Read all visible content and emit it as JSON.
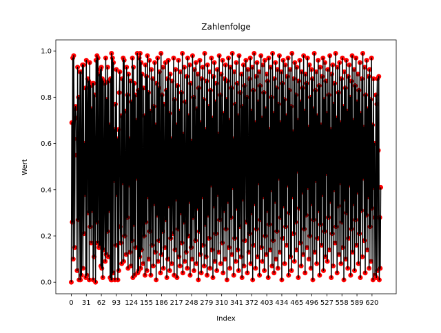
{
  "chart_data": {
    "type": "line",
    "title": "Zahlenfolge",
    "x_label": "Index",
    "y_label": "Wert",
    "line_color": "#000000",
    "marker_color": "#ff0000",
    "xlim": [
      -31.9,
      669.9
    ],
    "xticks": [
      0,
      31,
      62,
      93,
      124,
      155,
      186,
      217,
      248,
      279,
      310,
      341,
      372,
      403,
      434,
      465,
      496,
      527,
      558,
      589,
      620
    ],
    "ylim": [
      -0.05,
      1.048
    ],
    "yticks": [
      {
        "value": 0,
        "label": "0.0"
      },
      {
        "value": 0.2,
        "label": "0.2"
      },
      {
        "value": 0.4,
        "label": "0.4"
      },
      {
        "value": 0.6,
        "label": "0.6"
      },
      {
        "value": 0.8,
        "label": "0.8"
      },
      {
        "value": 1,
        "label": "1.0"
      }
    ],
    "values": [
      0.0,
      0.69,
      0.26,
      0.97,
      0.1,
      0.98,
      0.62,
      0.15,
      0.75,
      0.76,
      0.71,
      0.55,
      0.05,
      0.93,
      0.27,
      0.8,
      0.01,
      0.52,
      0.91,
      0.01,
      0.91,
      0.03,
      0.46,
      0.94,
      0.06,
      0.94,
      0.21,
      0.6,
      0.38,
      0.84,
      0.02,
      0.96,
      0.03,
      0.72,
      0.88,
      0.3,
      0.87,
      0.01,
      0.95,
      0.24,
      0.85,
      0.17,
      0.75,
      0.31,
      0.86,
      0.01,
      0.86,
      0.11,
      0.81,
      0.46,
      0.0,
      0.96,
      0.26,
      0.98,
      0.17,
      0.97,
      0.53,
      0.15,
      0.9,
      0.16,
      0.92,
      0.07,
      0.93,
      0.06,
      0.88,
      0.02,
      0.87,
      0.14,
      0.4,
      0.86,
      0.09,
      0.97,
      0.12,
      0.79,
      0.22,
      0.93,
      0.11,
      0.87,
      0.31,
      0.68,
      0.02,
      0.88,
      0.01,
      0.99,
      0.01,
      0.97,
      0.04,
      0.95,
      0.44,
      0.66,
      0.01,
      0.77,
      0.16,
      0.92,
      0.38,
      0.62,
      0.01,
      0.66,
      0.05,
      0.82,
      0.91,
      0.24,
      0.17,
      0.72,
      0.08,
      0.88,
      0.43,
      0.97,
      0.09,
      0.96,
      0.2,
      0.74,
      0.35,
      0.12,
      0.93,
      0.28,
      0.81,
      0.06,
      0.9,
      0.42,
      0.62,
      0.13,
      0.87,
      0.07,
      0.78,
      0.18,
      0.97,
      0.02,
      0.93,
      0.25,
      0.86,
      0.03,
      0.81,
      0.15,
      0.7,
      0.45,
      0.99,
      0.04,
      0.83,
      0.05,
      0.97,
      0.11,
      0.99,
      0.06,
      0.95,
      0.14,
      0.9,
      0.31,
      0.08,
      0.84,
      0.2,
      0.72,
      0.03,
      0.94,
      0.26,
      0.89,
      0.05,
      0.98,
      0.37,
      0.82,
      0.1,
      0.96,
      0.22,
      0.74,
      0.03,
      0.92,
      0.48,
      0.16,
      0.88,
      0.07,
      0.76,
      0.34,
      0.95,
      0.13,
      0.68,
      0.01,
      0.86,
      0.29,
      0.97,
      0.09,
      0.84,
      0.18,
      0.91,
      0.39,
      0.04,
      0.99,
      0.12,
      0.81,
      0.22,
      0.93,
      0.06,
      0.77,
      0.41,
      0.15,
      0.95,
      0.27,
      0.83,
      0.02,
      0.88,
      0.1,
      0.96,
      0.33,
      0.73,
      0.05,
      0.9,
      0.19,
      0.62,
      0.08,
      0.87,
      0.44,
      0.21,
      0.97,
      0.03,
      0.79,
      0.14,
      0.92,
      0.36,
      0.68,
      0.02,
      0.85,
      0.23,
      0.96,
      0.11,
      0.74,
      0.07,
      0.91,
      0.3,
      0.82,
      0.17,
      0.99,
      0.04,
      0.64,
      0.26,
      0.93,
      0.09,
      0.78,
      0.4,
      0.13,
      0.89,
      0.06,
      0.97,
      0.2,
      0.72,
      0.35,
      0.94,
      0.03,
      0.86,
      0.15,
      0.61,
      0.1,
      0.98,
      0.28,
      0.8,
      0.05,
      0.92,
      0.43,
      0.18,
      0.95,
      0.08,
      0.75,
      0.32,
      0.9,
      0.01,
      0.84,
      0.22,
      0.96,
      0.12,
      0.69,
      0.04,
      0.88,
      0.37,
      0.93,
      0.16,
      0.79,
      0.07,
      0.99,
      0.25,
      0.66,
      0.11,
      0.87,
      0.03,
      0.94,
      0.29,
      0.76,
      0.19,
      0.91,
      0.06,
      0.83,
      0.42,
      0.97,
      0.14,
      0.71,
      0.02,
      0.89,
      0.33,
      0.95,
      0.09,
      0.78,
      0.21,
      0.86,
      0.05,
      0.92,
      0.38,
      0.64,
      0.13,
      0.98,
      0.27,
      0.81,
      0.08,
      0.9,
      0.46,
      0.17,
      0.96,
      0.04,
      0.73,
      0.31,
      0.88,
      0.1,
      0.94,
      0.23,
      0.79,
      0.01,
      0.87,
      0.35,
      0.97,
      0.15,
      0.7,
      0.06,
      0.93,
      0.28,
      0.84,
      0.12,
      0.99,
      0.41,
      0.62,
      0.03,
      0.91,
      0.19,
      0.77,
      0.09,
      0.95,
      0.32,
      0.86,
      0.14,
      0.72,
      0.05,
      0.98,
      0.24,
      0.82,
      0.44,
      0.11,
      0.9,
      0.02,
      0.76,
      0.36,
      0.94,
      0.07,
      0.85,
      0.18,
      0.67,
      0.96,
      0.26,
      0.8,
      0.04,
      0.92,
      0.39,
      0.13,
      0.88,
      0.21,
      0.97,
      0.08,
      0.74,
      0.3,
      0.93,
      0.01,
      0.83,
      0.16,
      0.99,
      0.34,
      0.69,
      0.06,
      0.89,
      0.23,
      0.95,
      0.11,
      0.78,
      0.43,
      0.91,
      0.03,
      0.85,
      0.27,
      0.98,
      0.15,
      0.71,
      0.09,
      0.94,
      0.37,
      0.82,
      0.05,
      0.96,
      0.2,
      0.75,
      0.12,
      0.9,
      0.31,
      0.87,
      0.02,
      0.97,
      0.25,
      0.66,
      0.14,
      0.93,
      0.4,
      0.8,
      0.07,
      0.99,
      0.18,
      0.73,
      0.04,
      0.88,
      0.35,
      0.95,
      0.1,
      0.84,
      0.22,
      0.92,
      0.06,
      0.77,
      0.45,
      0.98,
      0.13,
      0.69,
      0.28,
      0.91,
      0.01,
      0.86,
      0.19,
      0.96,
      0.33,
      0.79,
      0.08,
      0.94,
      0.24,
      0.72,
      0.16,
      0.89,
      0.42,
      0.97,
      0.03,
      0.83,
      0.3,
      0.92,
      0.11,
      0.76,
      0.05,
      0.99,
      0.37,
      0.65,
      0.21,
      0.88,
      0.09,
      0.95,
      0.26,
      0.81,
      0.14,
      0.93,
      0.48,
      0.7,
      0.02,
      0.87,
      0.32,
      0.96,
      0.17,
      0.78,
      0.07,
      0.91,
      0.39,
      0.84,
      0.12,
      0.98,
      0.23,
      0.74,
      0.04,
      0.9,
      0.29,
      0.86,
      0.15,
      0.97,
      0.41,
      0.67,
      0.1,
      0.94,
      0.2,
      0.8,
      0.06,
      0.92,
      0.34,
      0.88,
      0.01,
      0.75,
      0.27,
      0.99,
      0.13,
      0.83,
      0.44,
      0.91,
      0.08,
      0.72,
      0.19,
      0.96,
      0.31,
      0.85,
      0.03,
      0.93,
      0.25,
      0.68,
      0.16,
      0.89,
      0.38,
      0.97,
      0.05,
      0.79,
      0.22,
      0.95,
      0.11,
      0.87,
      0.47,
      0.73,
      0.09,
      0.92,
      0.28,
      0.81,
      0.14,
      0.98,
      0.35,
      0.66,
      0.02,
      0.9,
      0.21,
      0.94,
      0.07,
      0.77,
      0.4,
      0.86,
      0.17,
      0.99,
      0.24,
      0.71,
      0.04,
      0.93,
      0.33,
      0.82,
      0.12,
      0.95,
      0.43,
      0.69,
      0.08,
      0.88,
      0.26,
      0.97,
      0.15,
      0.76,
      0.01,
      0.91,
      0.36,
      0.84,
      0.1,
      0.96,
      0.3,
      0.74,
      0.06,
      0.89,
      0.19,
      0.94,
      0.42,
      0.8,
      0.03,
      0.87,
      0.23,
      0.98,
      0.13,
      0.7,
      0.34,
      0.92,
      0.05,
      0.85,
      0.27,
      0.97,
      0.16,
      0.78,
      0.39,
      0.9,
      0.08,
      0.83,
      0.21,
      0.95,
      0.02,
      0.73,
      0.31,
      0.88,
      0.11,
      0.99,
      0.45,
      0.67,
      0.18,
      0.93,
      0.04,
      0.81,
      0.29,
      0.96,
      0.14,
      0.75,
      0.37,
      0.89,
      0.06,
      0.92,
      0.24,
      0.79,
      0.09,
      0.97,
      0.32,
      0.68,
      0.01,
      0.88,
      0.41,
      0.6,
      0.03,
      0.28,
      0.81,
      0.02,
      0.77,
      0.88,
      0.05,
      0.57,
      0.89,
      0.01,
      0.28,
      0.06,
      0.41
    ]
  }
}
